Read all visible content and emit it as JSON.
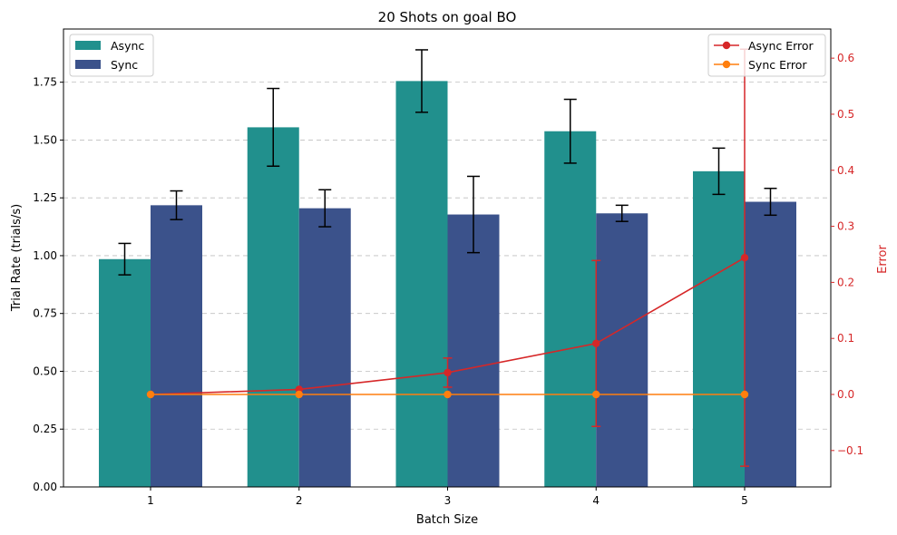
{
  "chart_data": {
    "type": "bar",
    "title": "20 Shots on goal BO",
    "xlabel": "Batch Size",
    "ylabel": "Trial Rate (trials/s)",
    "y2label": "Error",
    "categories": [
      "1",
      "2",
      "3",
      "4",
      "5"
    ],
    "ylim": [
      0,
      1.98
    ],
    "yticks": [
      "0.00",
      "0.25",
      "0.50",
      "0.75",
      "1.00",
      "1.25",
      "1.50",
      "1.75"
    ],
    "y2lim": [
      -0.165,
      0.652
    ],
    "y2ticks": [
      "−0.1",
      "0.0",
      "0.1",
      "0.2",
      "0.3",
      "0.4",
      "0.5",
      "0.6"
    ],
    "grid": "y-dashed",
    "bar_series": [
      {
        "name": "Async",
        "color": "#21908d",
        "values": [
          0.985,
          1.555,
          1.755,
          1.538,
          1.365
        ],
        "err": [
          0.068,
          0.168,
          0.135,
          0.138,
          0.1
        ]
      },
      {
        "name": "Sync",
        "color": "#3b528b",
        "values": [
          1.218,
          1.205,
          1.178,
          1.183,
          1.233
        ],
        "err": [
          0.062,
          0.08,
          0.165,
          0.035,
          0.058
        ]
      }
    ],
    "line_series": [
      {
        "name": "Async Error",
        "color": "#d62728",
        "values": [
          0.0,
          0.009,
          0.039,
          0.091,
          0.244
        ],
        "err": [
          0.0,
          0.0,
          0.026,
          0.148,
          0.372
        ]
      },
      {
        "name": "Sync Error",
        "color": "#ff7f0e",
        "values": [
          0.0,
          0.0,
          0.0,
          0.0,
          0.0
        ],
        "err": [
          0.0,
          0.0,
          0.0,
          0.0,
          0.0
        ]
      }
    ],
    "legend_left": "upper-left",
    "legend_right": "upper-right"
  }
}
